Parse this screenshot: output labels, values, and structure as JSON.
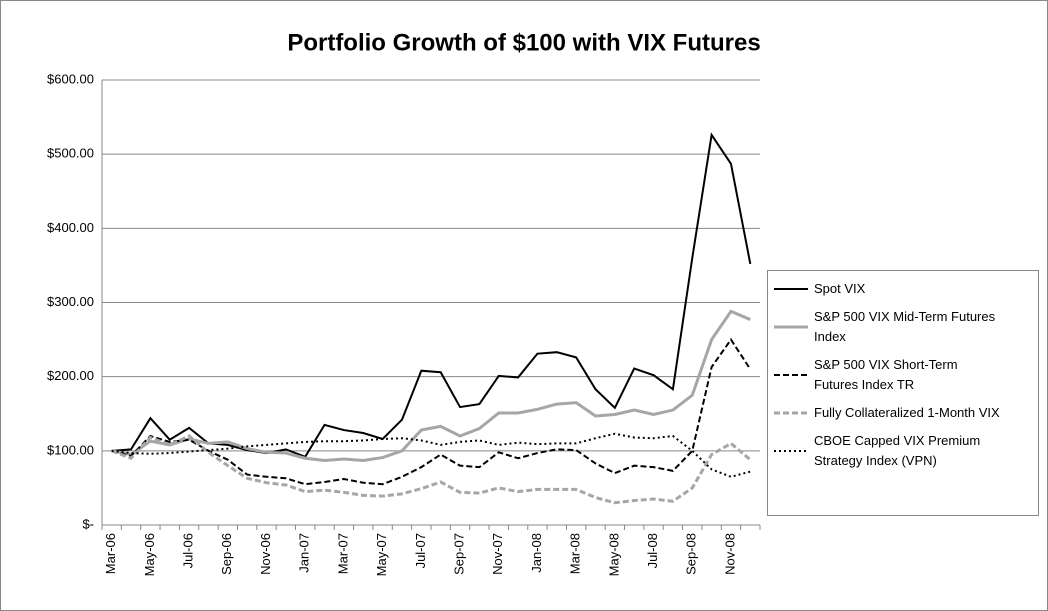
{
  "chart_data": {
    "type": "line",
    "title": "Portfolio Growth of $100 with VIX Futures",
    "categories": [
      "Mar-06",
      null,
      "May-06",
      null,
      "Jul-06",
      null,
      "Sep-06",
      null,
      "Nov-06",
      null,
      "Jan-07",
      null,
      "Mar-07",
      null,
      "May-07",
      null,
      "Jul-07",
      null,
      "Sep-07",
      null,
      "Nov-07",
      null,
      "Jan-08",
      null,
      "Mar-08",
      null,
      "May-08",
      null,
      "Jul-08",
      null,
      "Sep-08",
      null,
      "Nov-08",
      null
    ],
    "series": [
      {
        "name": "Spot VIX",
        "color": "#000000",
        "dash": "solid",
        "values": [
          100,
          102,
          144,
          115,
          131,
          110,
          108,
          101,
          97,
          102,
          92,
          135,
          128,
          124,
          116,
          142,
          208,
          206,
          159,
          163,
          201,
          199,
          231,
          233,
          226,
          183,
          158,
          211,
          202,
          183,
          360,
          526,
          487,
          352
        ]
      },
      {
        "name": "S&P 500 VIX Mid-Term Futures Index",
        "color": "#a6a6a6",
        "dash": "solid",
        "values": [
          100,
          95,
          113,
          108,
          116,
          110,
          112,
          103,
          98,
          97,
          90,
          87,
          89,
          87,
          91,
          100,
          128,
          133,
          120,
          130,
          151,
          151,
          156,
          163,
          165,
          147,
          149,
          155,
          149,
          155,
          175,
          250,
          288,
          277
        ]
      },
      {
        "name": "S&P 500 VIX Short-Term Futures Index TR",
        "color": "#000000",
        "dash": "dashed",
        "values": [
          100,
          93,
          120,
          112,
          115,
          100,
          88,
          68,
          65,
          63,
          55,
          58,
          62,
          57,
          55,
          65,
          78,
          95,
          80,
          78,
          98,
          90,
          97,
          102,
          101,
          83,
          70,
          80,
          78,
          73,
          100,
          213,
          250,
          210
        ]
      },
      {
        "name": "Fully Collateralized 1-Month VIX",
        "color": "#a6a6a6",
        "dash": "dashed",
        "values": [
          100,
          90,
          118,
          108,
          120,
          98,
          80,
          63,
          57,
          54,
          45,
          47,
          44,
          40,
          39,
          42,
          49,
          58,
          44,
          43,
          50,
          45,
          48,
          48,
          48,
          37,
          30,
          33,
          35,
          32,
          50,
          95,
          110,
          88
        ]
      },
      {
        "name": "CBOE Capped VIX Premium Strategy Index (VPN)",
        "color": "#000000",
        "dash": "dotted",
        "values": [
          100,
          97,
          96,
          97,
          99,
          101,
          103,
          106,
          108,
          110,
          112,
          113,
          113,
          114,
          116,
          117,
          114,
          108,
          112,
          114,
          108,
          111,
          109,
          110,
          110,
          117,
          123,
          118,
          117,
          120,
          100,
          75,
          65,
          72
        ]
      }
    ],
    "ylim": [
      0,
      600
    ],
    "yticks": [
      {
        "value": 0,
        "label": "$-"
      },
      {
        "value": 100,
        "label": "$100.00"
      },
      {
        "value": 200,
        "label": "$200.00"
      },
      {
        "value": 300,
        "label": "$300.00"
      },
      {
        "value": 400,
        "label": "$400.00"
      },
      {
        "value": 500,
        "label": "$500.00"
      },
      {
        "value": 600,
        "label": "$600.00"
      }
    ],
    "grid": true,
    "legend": "right"
  }
}
